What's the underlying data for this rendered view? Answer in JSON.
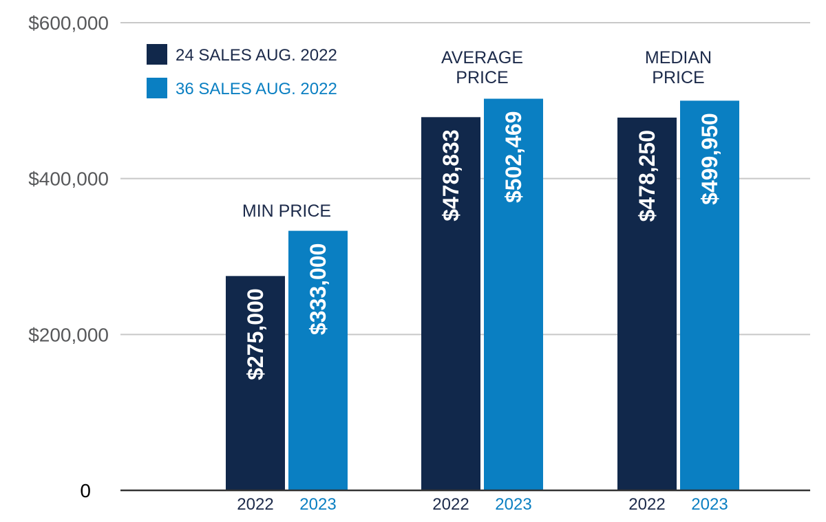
{
  "chart_data": {
    "type": "bar",
    "categories": [
      "MIN PRICE",
      "AVERAGE PRICE",
      "MEDIAN PRICE"
    ],
    "category_label_lines": [
      [
        "MIN PRICE"
      ],
      [
        "AVERAGE",
        "PRICE"
      ],
      [
        "MEDIAN",
        "PRICE"
      ]
    ],
    "series": [
      {
        "name": "24 SALES AUG. 2022",
        "year_label": "2022",
        "color": "#11284b",
        "values": [
          275000,
          478833,
          478250
        ],
        "value_labels": [
          "$275,000",
          "$478,833",
          "$478,250"
        ]
      },
      {
        "name": "36 SALES  AUG. 2022",
        "year_label": "2023",
        "color": "#0a7fc2",
        "values": [
          333000,
          502469,
          499950
        ],
        "value_labels": [
          "$333,000",
          "$502,469",
          "$499,950"
        ]
      }
    ],
    "yticks": [
      0,
      200000,
      400000,
      600000
    ],
    "ytick_labels": [
      "0",
      "$200,000",
      "$400,000",
      "$600,000"
    ],
    "ylim": [
      0,
      600000
    ],
    "grid": true,
    "legend_position": "top-left",
    "title": "",
    "xlabel": "",
    "ylabel": ""
  }
}
